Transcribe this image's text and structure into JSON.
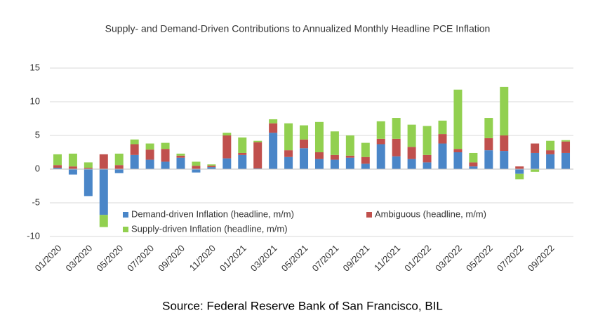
{
  "chart_data": {
    "type": "stacked_bar",
    "title": "Supply- and Demand-Driven Contributions to Annualized Monthly Headline PCE Inflation",
    "source": "Source: Federal Reserve Bank of San Francisco, BIL",
    "categories": [
      "01/2020",
      null,
      "03/2020",
      null,
      "05/2020",
      null,
      "07/2020",
      null,
      "09/2020",
      null,
      "11/2020",
      null,
      "01/2021",
      null,
      "03/2021",
      null,
      "05/2021",
      null,
      "07/2021",
      null,
      "09/2021",
      null,
      "11/2021",
      null,
      "01/2022",
      null,
      "03/2022",
      null,
      "05/2022",
      null,
      "07/2022",
      null,
      "09/2022",
      null
    ],
    "series": [
      {
        "name": "Demand-driven Inflation (headline, m/m)",
        "color": "#4a86c8",
        "values": [
          0.2,
          -0.8,
          -4.0,
          -6.8,
          -0.6,
          2.1,
          1.4,
          1.1,
          1.7,
          -0.5,
          0.3,
          1.6,
          2.1,
          0.1,
          5.4,
          1.8,
          3.1,
          1.5,
          1.4,
          1.7,
          0.8,
          3.7,
          1.9,
          1.5,
          1.0,
          3.8,
          2.5,
          0.4,
          2.8,
          2.7,
          -0.7,
          2.4,
          2.2,
          2.4
        ]
      },
      {
        "name": "Ambiguous (headline, m/m)",
        "color": "#c0504d",
        "values": [
          0.4,
          0.4,
          0.2,
          2.2,
          0.6,
          1.6,
          1.5,
          1.9,
          0.3,
          0.5,
          0.2,
          3.4,
          0.3,
          3.9,
          1.4,
          1.0,
          1.3,
          1.0,
          0.7,
          0.3,
          1.0,
          0.8,
          2.6,
          1.8,
          1.1,
          1.4,
          0.5,
          0.6,
          1.8,
          2.3,
          0.4,
          1.4,
          0.6,
          1.7
        ]
      },
      {
        "name": "Supply-driven Inflation (headline, m/m)",
        "color": "#92d050",
        "values": [
          1.6,
          1.9,
          0.8,
          -1.8,
          1.7,
          0.7,
          0.9,
          0.9,
          0.3,
          0.6,
          0.2,
          0.4,
          2.3,
          0.2,
          0.6,
          4.0,
          2.1,
          4.5,
          3.5,
          3.0,
          2.1,
          2.6,
          3.1,
          3.3,
          4.3,
          2.0,
          8.8,
          1.4,
          3.0,
          7.2,
          -0.8,
          -0.4,
          1.4,
          0.2
        ]
      }
    ],
    "ylim": [
      -10,
      15
    ],
    "yticks": [
      -10,
      -5,
      0,
      5,
      10,
      15
    ],
    "grid": true
  }
}
